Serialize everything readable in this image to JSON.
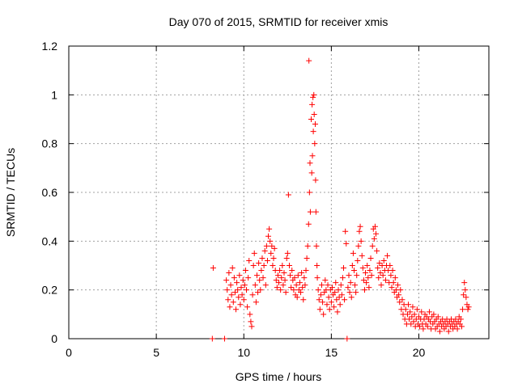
{
  "chart_data": {
    "type": "scatter",
    "title": "Day 070 of 2015, SRMTID for receiver xmis",
    "xlabel": "GPS time / hours",
    "ylabel": "SRMTID / TECUs",
    "xlim": [
      0,
      24
    ],
    "ylim": [
      0,
      1.2
    ],
    "xticks": [
      0,
      5,
      10,
      15,
      20
    ],
    "xtick_labels": [
      "0",
      "5",
      "10",
      "15",
      "20"
    ],
    "yticks": [
      0,
      0.2,
      0.4,
      0.6,
      0.8,
      1.0,
      1.2
    ],
    "ytick_labels": [
      "0",
      "0.2",
      "0.4",
      "0.6",
      "0.8",
      "1",
      "1.2"
    ],
    "grid": true,
    "marker": "+",
    "color": "#ff0000",
    "series": [
      {
        "name": "SRMTID",
        "points": [
          [
            8.2,
            0.0
          ],
          [
            8.25,
            0.29
          ],
          [
            8.9,
            0.0
          ],
          [
            9.0,
            0.24
          ],
          [
            9.05,
            0.2
          ],
          [
            9.1,
            0.16
          ],
          [
            9.15,
            0.27
          ],
          [
            9.2,
            0.13
          ],
          [
            9.25,
            0.22
          ],
          [
            9.3,
            0.18
          ],
          [
            9.35,
            0.29
          ],
          [
            9.4,
            0.15
          ],
          [
            9.45,
            0.25
          ],
          [
            9.5,
            0.19
          ],
          [
            9.55,
            0.12
          ],
          [
            9.6,
            0.23
          ],
          [
            9.65,
            0.2
          ],
          [
            9.7,
            0.17
          ],
          [
            9.75,
            0.26
          ],
          [
            9.8,
            0.14
          ],
          [
            9.85,
            0.21
          ],
          [
            9.9,
            0.18
          ],
          [
            9.95,
            0.24
          ],
          [
            10.0,
            0.16
          ],
          [
            10.05,
            0.22
          ],
          [
            10.1,
            0.28
          ],
          [
            10.15,
            0.2
          ],
          [
            10.2,
            0.13
          ],
          [
            10.25,
            0.25
          ],
          [
            10.3,
            0.32
          ],
          [
            10.35,
            0.1
          ],
          [
            10.4,
            0.07
          ],
          [
            10.45,
            0.05
          ],
          [
            10.5,
            0.18
          ],
          [
            10.55,
            0.3
          ],
          [
            10.6,
            0.35
          ],
          [
            10.65,
            0.22
          ],
          [
            10.7,
            0.15
          ],
          [
            10.75,
            0.26
          ],
          [
            10.8,
            0.19
          ],
          [
            10.85,
            0.31
          ],
          [
            10.9,
            0.24
          ],
          [
            10.95,
            0.2
          ],
          [
            11.0,
            0.28
          ],
          [
            11.05,
            0.33
          ],
          [
            11.1,
            0.25
          ],
          [
            11.15,
            0.3
          ],
          [
            11.2,
            0.36
          ],
          [
            11.25,
            0.22
          ],
          [
            11.3,
            0.38
          ],
          [
            11.35,
            0.32
          ],
          [
            11.4,
            0.42
          ],
          [
            11.45,
            0.45
          ],
          [
            11.5,
            0.4
          ],
          [
            11.55,
            0.35
          ],
          [
            11.6,
            0.38
          ],
          [
            11.65,
            0.3
          ],
          [
            11.7,
            0.33
          ],
          [
            11.75,
            0.37
          ],
          [
            11.8,
            0.28
          ],
          [
            11.85,
            0.24
          ],
          [
            11.9,
            0.21
          ],
          [
            11.95,
            0.26
          ],
          [
            12.0,
            0.23
          ],
          [
            12.05,
            0.28
          ],
          [
            12.1,
            0.2
          ],
          [
            12.15,
            0.25
          ],
          [
            12.2,
            0.3
          ],
          [
            12.25,
            0.22
          ],
          [
            12.3,
            0.27
          ],
          [
            12.35,
            0.24
          ],
          [
            12.4,
            0.19
          ],
          [
            12.45,
            0.33
          ],
          [
            12.5,
            0.35
          ],
          [
            12.55,
            0.59
          ],
          [
            12.6,
            0.3
          ],
          [
            12.65,
            0.26
          ],
          [
            12.7,
            0.21
          ],
          [
            12.75,
            0.28
          ],
          [
            12.8,
            0.24
          ],
          [
            12.85,
            0.2
          ],
          [
            12.9,
            0.25
          ],
          [
            12.95,
            0.18
          ],
          [
            13.0,
            0.22
          ],
          [
            13.05,
            0.17
          ],
          [
            13.1,
            0.26
          ],
          [
            13.15,
            0.2
          ],
          [
            13.2,
            0.23
          ],
          [
            13.25,
            0.19
          ],
          [
            13.3,
            0.27
          ],
          [
            13.35,
            0.21
          ],
          [
            13.4,
            0.16
          ],
          [
            13.45,
            0.25
          ],
          [
            13.5,
            0.22
          ],
          [
            13.55,
            0.28
          ],
          [
            13.6,
            0.33
          ],
          [
            13.65,
            0.38
          ],
          [
            13.7,
            0.47
          ],
          [
            13.72,
            1.14
          ],
          [
            13.75,
            0.6
          ],
          [
            13.78,
            0.72
          ],
          [
            13.8,
            0.52
          ],
          [
            13.85,
            0.9
          ],
          [
            13.88,
            0.68
          ],
          [
            13.9,
            0.96
          ],
          [
            13.92,
            0.75
          ],
          [
            13.95,
            0.99
          ],
          [
            13.97,
            0.85
          ],
          [
            14.0,
            1.0
          ],
          [
            14.02,
            0.92
          ],
          [
            14.05,
            0.8
          ],
          [
            14.08,
            0.88
          ],
          [
            14.1,
            0.65
          ],
          [
            14.12,
            0.52
          ],
          [
            14.15,
            0.38
          ],
          [
            14.18,
            0.3
          ],
          [
            14.2,
            0.25
          ],
          [
            14.25,
            0.2
          ],
          [
            14.3,
            0.16
          ],
          [
            14.35,
            0.12
          ],
          [
            14.4,
            0.18
          ],
          [
            14.45,
            0.22
          ],
          [
            14.5,
            0.15
          ],
          [
            14.55,
            0.1
          ],
          [
            14.6,
            0.19
          ],
          [
            14.65,
            0.24
          ],
          [
            14.7,
            0.2
          ],
          [
            14.75,
            0.14
          ],
          [
            14.8,
            0.22
          ],
          [
            14.85,
            0.17
          ],
          [
            14.9,
            0.12
          ],
          [
            14.95,
            0.2
          ],
          [
            15.0,
            0.15
          ],
          [
            15.05,
            0.21
          ],
          [
            15.1,
            0.18
          ],
          [
            15.15,
            0.13
          ],
          [
            15.2,
            0.19
          ],
          [
            15.25,
            0.23
          ],
          [
            15.3,
            0.16
          ],
          [
            15.35,
            0.11
          ],
          [
            15.4,
            0.2
          ],
          [
            15.45,
            0.17
          ],
          [
            15.5,
            0.14
          ],
          [
            15.55,
            0.22
          ],
          [
            15.6,
            0.18
          ],
          [
            15.65,
            0.25
          ],
          [
            15.7,
            0.29
          ],
          [
            15.75,
            0.16
          ],
          [
            15.8,
            0.44
          ],
          [
            15.85,
            0.39
          ],
          [
            15.9,
            0.0
          ],
          [
            15.95,
            0.21
          ],
          [
            16.0,
            0.26
          ],
          [
            16.05,
            0.19
          ],
          [
            16.1,
            0.23
          ],
          [
            16.15,
            0.17
          ],
          [
            16.2,
            0.3
          ],
          [
            16.25,
            0.35
          ],
          [
            16.3,
            0.28
          ],
          [
            16.35,
            0.22
          ],
          [
            16.4,
            0.19
          ],
          [
            16.45,
            0.26
          ],
          [
            16.5,
            0.32
          ],
          [
            16.55,
            0.38
          ],
          [
            16.6,
            0.44
          ],
          [
            16.65,
            0.46
          ],
          [
            16.7,
            0.4
          ],
          [
            16.75,
            0.34
          ],
          [
            16.8,
            0.29
          ],
          [
            16.85,
            0.24
          ],
          [
            16.9,
            0.2
          ],
          [
            16.95,
            0.27
          ],
          [
            17.0,
            0.23
          ],
          [
            17.05,
            0.3
          ],
          [
            17.1,
            0.25
          ],
          [
            17.15,
            0.21
          ],
          [
            17.2,
            0.28
          ],
          [
            17.25,
            0.33
          ],
          [
            17.3,
            0.26
          ],
          [
            17.35,
            0.38
          ],
          [
            17.4,
            0.45
          ],
          [
            17.45,
            0.41
          ],
          [
            17.5,
            0.46
          ],
          [
            17.55,
            0.43
          ],
          [
            17.6,
            0.36
          ],
          [
            17.65,
            0.29
          ],
          [
            17.7,
            0.25
          ],
          [
            17.75,
            0.31
          ],
          [
            17.8,
            0.27
          ],
          [
            17.85,
            0.22
          ],
          [
            17.9,
            0.3
          ],
          [
            17.95,
            0.26
          ],
          [
            18.0,
            0.32
          ],
          [
            18.05,
            0.28
          ],
          [
            18.1,
            0.24
          ],
          [
            18.15,
            0.3
          ],
          [
            18.2,
            0.34
          ],
          [
            18.25,
            0.28
          ],
          [
            18.3,
            0.23
          ],
          [
            18.35,
            0.3
          ],
          [
            18.4,
            0.26
          ],
          [
            18.45,
            0.21
          ],
          [
            18.5,
            0.28
          ],
          [
            18.55,
            0.23
          ],
          [
            18.6,
            0.19
          ],
          [
            18.65,
            0.25
          ],
          [
            18.7,
            0.2
          ],
          [
            18.75,
            0.17
          ],
          [
            18.8,
            0.22
          ],
          [
            18.85,
            0.18
          ],
          [
            18.9,
            0.15
          ],
          [
            18.95,
            0.2
          ],
          [
            19.0,
            0.12
          ],
          [
            19.05,
            0.16
          ],
          [
            19.1,
            0.1
          ],
          [
            19.15,
            0.14
          ],
          [
            19.2,
            0.08
          ],
          [
            19.25,
            0.12
          ],
          [
            19.3,
            0.06
          ],
          [
            19.35,
            0.1
          ],
          [
            19.4,
            0.14
          ],
          [
            19.45,
            0.08
          ],
          [
            19.5,
            0.11
          ],
          [
            19.55,
            0.06
          ],
          [
            19.6,
            0.09
          ],
          [
            19.65,
            0.13
          ],
          [
            19.7,
            0.07
          ],
          [
            19.75,
            0.1
          ],
          [
            19.8,
            0.05
          ],
          [
            19.85,
            0.08
          ],
          [
            19.9,
            0.12
          ],
          [
            19.95,
            0.06
          ],
          [
            20.0,
            0.09
          ],
          [
            20.05,
            0.05
          ],
          [
            20.1,
            0.08
          ],
          [
            20.15,
            0.11
          ],
          [
            20.2,
            0.06
          ],
          [
            20.25,
            0.04
          ],
          [
            20.3,
            0.08
          ],
          [
            20.35,
            0.1
          ],
          [
            20.4,
            0.06
          ],
          [
            20.45,
            0.09
          ],
          [
            20.5,
            0.05
          ],
          [
            20.55,
            0.08
          ],
          [
            20.6,
            0.11
          ],
          [
            20.65,
            0.07
          ],
          [
            20.7,
            0.04
          ],
          [
            20.75,
            0.09
          ],
          [
            20.8,
            0.06
          ],
          [
            20.85,
            0.1
          ],
          [
            20.9,
            0.07
          ],
          [
            20.95,
            0.04
          ],
          [
            21.0,
            0.08
          ],
          [
            21.05,
            0.05
          ],
          [
            21.1,
            0.09
          ],
          [
            21.15,
            0.06
          ],
          [
            21.2,
            0.03
          ],
          [
            21.25,
            0.07
          ],
          [
            21.3,
            0.05
          ],
          [
            21.35,
            0.08
          ],
          [
            21.4,
            0.06
          ],
          [
            21.45,
            0.04
          ],
          [
            21.5,
            0.07
          ],
          [
            21.55,
            0.05
          ],
          [
            21.6,
            0.08
          ],
          [
            21.65,
            0.06
          ],
          [
            21.7,
            0.03
          ],
          [
            21.75,
            0.07
          ],
          [
            21.8,
            0.05
          ],
          [
            21.85,
            0.08
          ],
          [
            21.9,
            0.06
          ],
          [
            21.95,
            0.04
          ],
          [
            22.0,
            0.07
          ],
          [
            22.05,
            0.05
          ],
          [
            22.1,
            0.08
          ],
          [
            22.15,
            0.06
          ],
          [
            22.2,
            0.04
          ],
          [
            22.25,
            0.07
          ],
          [
            22.3,
            0.09
          ],
          [
            22.35,
            0.06
          ],
          [
            22.4,
            0.08
          ],
          [
            22.45,
            0.05
          ],
          [
            22.5,
            0.12
          ],
          [
            22.55,
            0.18
          ],
          [
            22.6,
            0.23
          ],
          [
            22.65,
            0.2
          ],
          [
            22.7,
            0.17
          ],
          [
            22.75,
            0.14
          ],
          [
            22.8,
            0.12
          ],
          [
            22.85,
            0.13
          ]
        ]
      }
    ]
  }
}
